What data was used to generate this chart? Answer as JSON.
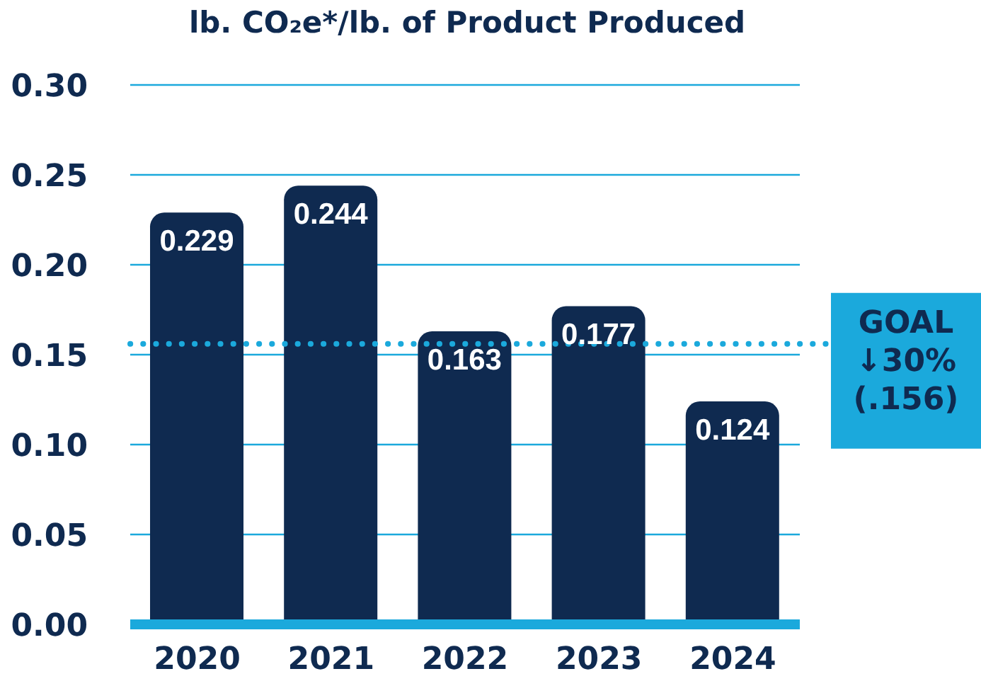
{
  "chart_data": {
    "type": "bar",
    "title": "lb. CO₂e*/lb. of Product Produced",
    "categories": [
      "2020",
      "2021",
      "2022",
      "2023",
      "2024"
    ],
    "values": [
      0.229,
      0.244,
      0.163,
      0.177,
      0.124
    ],
    "color": "#0f2a50",
    "ylim": [
      0,
      0.3
    ],
    "yticks": [
      {
        "value": 0,
        "label": "0.00"
      },
      {
        "value": 0.05,
        "label": "0.05"
      },
      {
        "value": 0.1,
        "label": "0.10"
      },
      {
        "value": 0.15,
        "label": "0.15"
      },
      {
        "value": 0.2,
        "label": "0.20"
      },
      {
        "value": 0.25,
        "label": "0.25"
      },
      {
        "value": 0.3,
        "label": "0.30"
      }
    ],
    "grid": "y",
    "data_labels": true,
    "legend": false,
    "ref_lines": [
      {
        "axis": "y",
        "value": 0.156,
        "label": "GOAL ↓30% (.156)",
        "color": "#1ba9dc",
        "line_style": "dotted"
      }
    ]
  }
}
